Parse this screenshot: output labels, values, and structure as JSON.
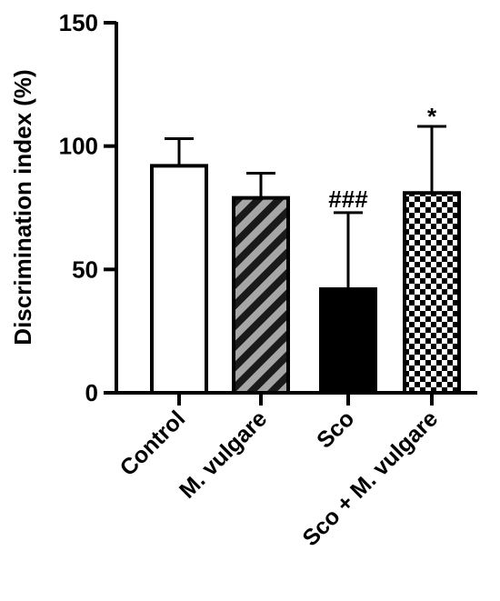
{
  "chart_data": {
    "type": "bar",
    "title": "",
    "xlabel": "",
    "ylabel": "Discrimination index (%)",
    "ylim": [
      0,
      150
    ],
    "yticks": [
      0,
      50,
      100,
      150
    ],
    "grid": false,
    "legend": "none",
    "categories": [
      "Control",
      "M. vulgare",
      "Sco",
      "Sco + M. vulgare"
    ],
    "values": [
      92,
      79,
      42,
      81
    ],
    "errors": [
      11,
      10,
      31,
      27
    ],
    "annotations": [
      "",
      "",
      "###",
      "*"
    ],
    "fills": [
      "white",
      "diagonal-stripes",
      "solid-black",
      "checkerboard"
    ],
    "colors": {
      "axis": "#000000",
      "bar_outline": "#000000",
      "stripe_light": "#a6a6a6",
      "stripe_dark": "#1a1a1a",
      "solid": "#000000",
      "white": "#ffffff"
    }
  }
}
